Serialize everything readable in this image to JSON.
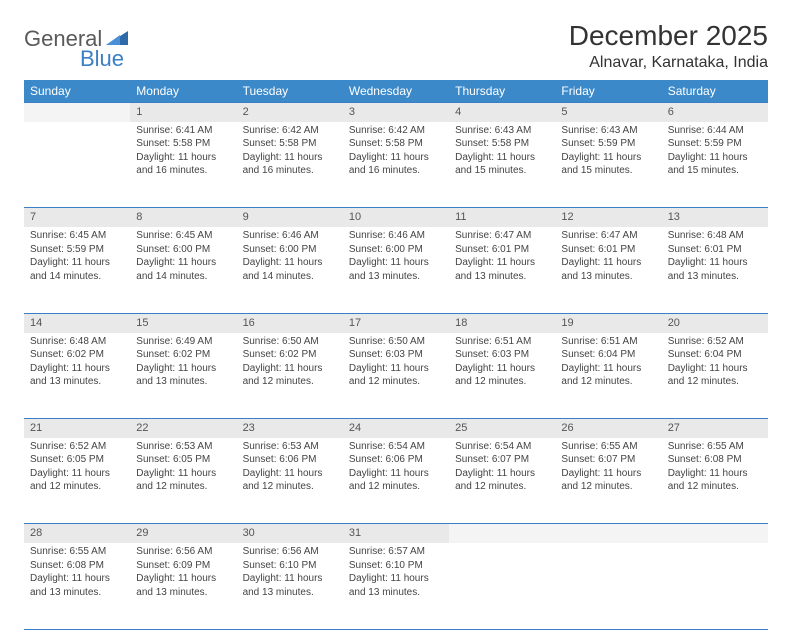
{
  "logo": {
    "general": "General",
    "blue": "Blue"
  },
  "header": {
    "month": "December 2025",
    "location": "Alnavar, Karnataka, India"
  },
  "colors": {
    "header_bg": "#3b89c9",
    "divider": "#3b7fc4",
    "daynum_bg": "#e9e9e9"
  },
  "days": [
    "Sunday",
    "Monday",
    "Tuesday",
    "Wednesday",
    "Thursday",
    "Friday",
    "Saturday"
  ],
  "weeks": [
    {
      "nums": [
        "",
        "1",
        "2",
        "3",
        "4",
        "5",
        "6"
      ],
      "cells": [
        null,
        {
          "sr": "Sunrise: 6:41 AM",
          "ss": "Sunset: 5:58 PM",
          "dl": "Daylight: 11 hours and 16 minutes."
        },
        {
          "sr": "Sunrise: 6:42 AM",
          "ss": "Sunset: 5:58 PM",
          "dl": "Daylight: 11 hours and 16 minutes."
        },
        {
          "sr": "Sunrise: 6:42 AM",
          "ss": "Sunset: 5:58 PM",
          "dl": "Daylight: 11 hours and 16 minutes."
        },
        {
          "sr": "Sunrise: 6:43 AM",
          "ss": "Sunset: 5:58 PM",
          "dl": "Daylight: 11 hours and 15 minutes."
        },
        {
          "sr": "Sunrise: 6:43 AM",
          "ss": "Sunset: 5:59 PM",
          "dl": "Daylight: 11 hours and 15 minutes."
        },
        {
          "sr": "Sunrise: 6:44 AM",
          "ss": "Sunset: 5:59 PM",
          "dl": "Daylight: 11 hours and 15 minutes."
        }
      ]
    },
    {
      "nums": [
        "7",
        "8",
        "9",
        "10",
        "11",
        "12",
        "13"
      ],
      "cells": [
        {
          "sr": "Sunrise: 6:45 AM",
          "ss": "Sunset: 5:59 PM",
          "dl": "Daylight: 11 hours and 14 minutes."
        },
        {
          "sr": "Sunrise: 6:45 AM",
          "ss": "Sunset: 6:00 PM",
          "dl": "Daylight: 11 hours and 14 minutes."
        },
        {
          "sr": "Sunrise: 6:46 AM",
          "ss": "Sunset: 6:00 PM",
          "dl": "Daylight: 11 hours and 14 minutes."
        },
        {
          "sr": "Sunrise: 6:46 AM",
          "ss": "Sunset: 6:00 PM",
          "dl": "Daylight: 11 hours and 13 minutes."
        },
        {
          "sr": "Sunrise: 6:47 AM",
          "ss": "Sunset: 6:01 PM",
          "dl": "Daylight: 11 hours and 13 minutes."
        },
        {
          "sr": "Sunrise: 6:47 AM",
          "ss": "Sunset: 6:01 PM",
          "dl": "Daylight: 11 hours and 13 minutes."
        },
        {
          "sr": "Sunrise: 6:48 AM",
          "ss": "Sunset: 6:01 PM",
          "dl": "Daylight: 11 hours and 13 minutes."
        }
      ]
    },
    {
      "nums": [
        "14",
        "15",
        "16",
        "17",
        "18",
        "19",
        "20"
      ],
      "cells": [
        {
          "sr": "Sunrise: 6:48 AM",
          "ss": "Sunset: 6:02 PM",
          "dl": "Daylight: 11 hours and 13 minutes."
        },
        {
          "sr": "Sunrise: 6:49 AM",
          "ss": "Sunset: 6:02 PM",
          "dl": "Daylight: 11 hours and 13 minutes."
        },
        {
          "sr": "Sunrise: 6:50 AM",
          "ss": "Sunset: 6:02 PM",
          "dl": "Daylight: 11 hours and 12 minutes."
        },
        {
          "sr": "Sunrise: 6:50 AM",
          "ss": "Sunset: 6:03 PM",
          "dl": "Daylight: 11 hours and 12 minutes."
        },
        {
          "sr": "Sunrise: 6:51 AM",
          "ss": "Sunset: 6:03 PM",
          "dl": "Daylight: 11 hours and 12 minutes."
        },
        {
          "sr": "Sunrise: 6:51 AM",
          "ss": "Sunset: 6:04 PM",
          "dl": "Daylight: 11 hours and 12 minutes."
        },
        {
          "sr": "Sunrise: 6:52 AM",
          "ss": "Sunset: 6:04 PM",
          "dl": "Daylight: 11 hours and 12 minutes."
        }
      ]
    },
    {
      "nums": [
        "21",
        "22",
        "23",
        "24",
        "25",
        "26",
        "27"
      ],
      "cells": [
        {
          "sr": "Sunrise: 6:52 AM",
          "ss": "Sunset: 6:05 PM",
          "dl": "Daylight: 11 hours and 12 minutes."
        },
        {
          "sr": "Sunrise: 6:53 AM",
          "ss": "Sunset: 6:05 PM",
          "dl": "Daylight: 11 hours and 12 minutes."
        },
        {
          "sr": "Sunrise: 6:53 AM",
          "ss": "Sunset: 6:06 PM",
          "dl": "Daylight: 11 hours and 12 minutes."
        },
        {
          "sr": "Sunrise: 6:54 AM",
          "ss": "Sunset: 6:06 PM",
          "dl": "Daylight: 11 hours and 12 minutes."
        },
        {
          "sr": "Sunrise: 6:54 AM",
          "ss": "Sunset: 6:07 PM",
          "dl": "Daylight: 11 hours and 12 minutes."
        },
        {
          "sr": "Sunrise: 6:55 AM",
          "ss": "Sunset: 6:07 PM",
          "dl": "Daylight: 11 hours and 12 minutes."
        },
        {
          "sr": "Sunrise: 6:55 AM",
          "ss": "Sunset: 6:08 PM",
          "dl": "Daylight: 11 hours and 12 minutes."
        }
      ]
    },
    {
      "nums": [
        "28",
        "29",
        "30",
        "31",
        "",
        "",
        ""
      ],
      "cells": [
        {
          "sr": "Sunrise: 6:55 AM",
          "ss": "Sunset: 6:08 PM",
          "dl": "Daylight: 11 hours and 13 minutes."
        },
        {
          "sr": "Sunrise: 6:56 AM",
          "ss": "Sunset: 6:09 PM",
          "dl": "Daylight: 11 hours and 13 minutes."
        },
        {
          "sr": "Sunrise: 6:56 AM",
          "ss": "Sunset: 6:10 PM",
          "dl": "Daylight: 11 hours and 13 minutes."
        },
        {
          "sr": "Sunrise: 6:57 AM",
          "ss": "Sunset: 6:10 PM",
          "dl": "Daylight: 11 hours and 13 minutes."
        },
        null,
        null,
        null
      ]
    }
  ]
}
